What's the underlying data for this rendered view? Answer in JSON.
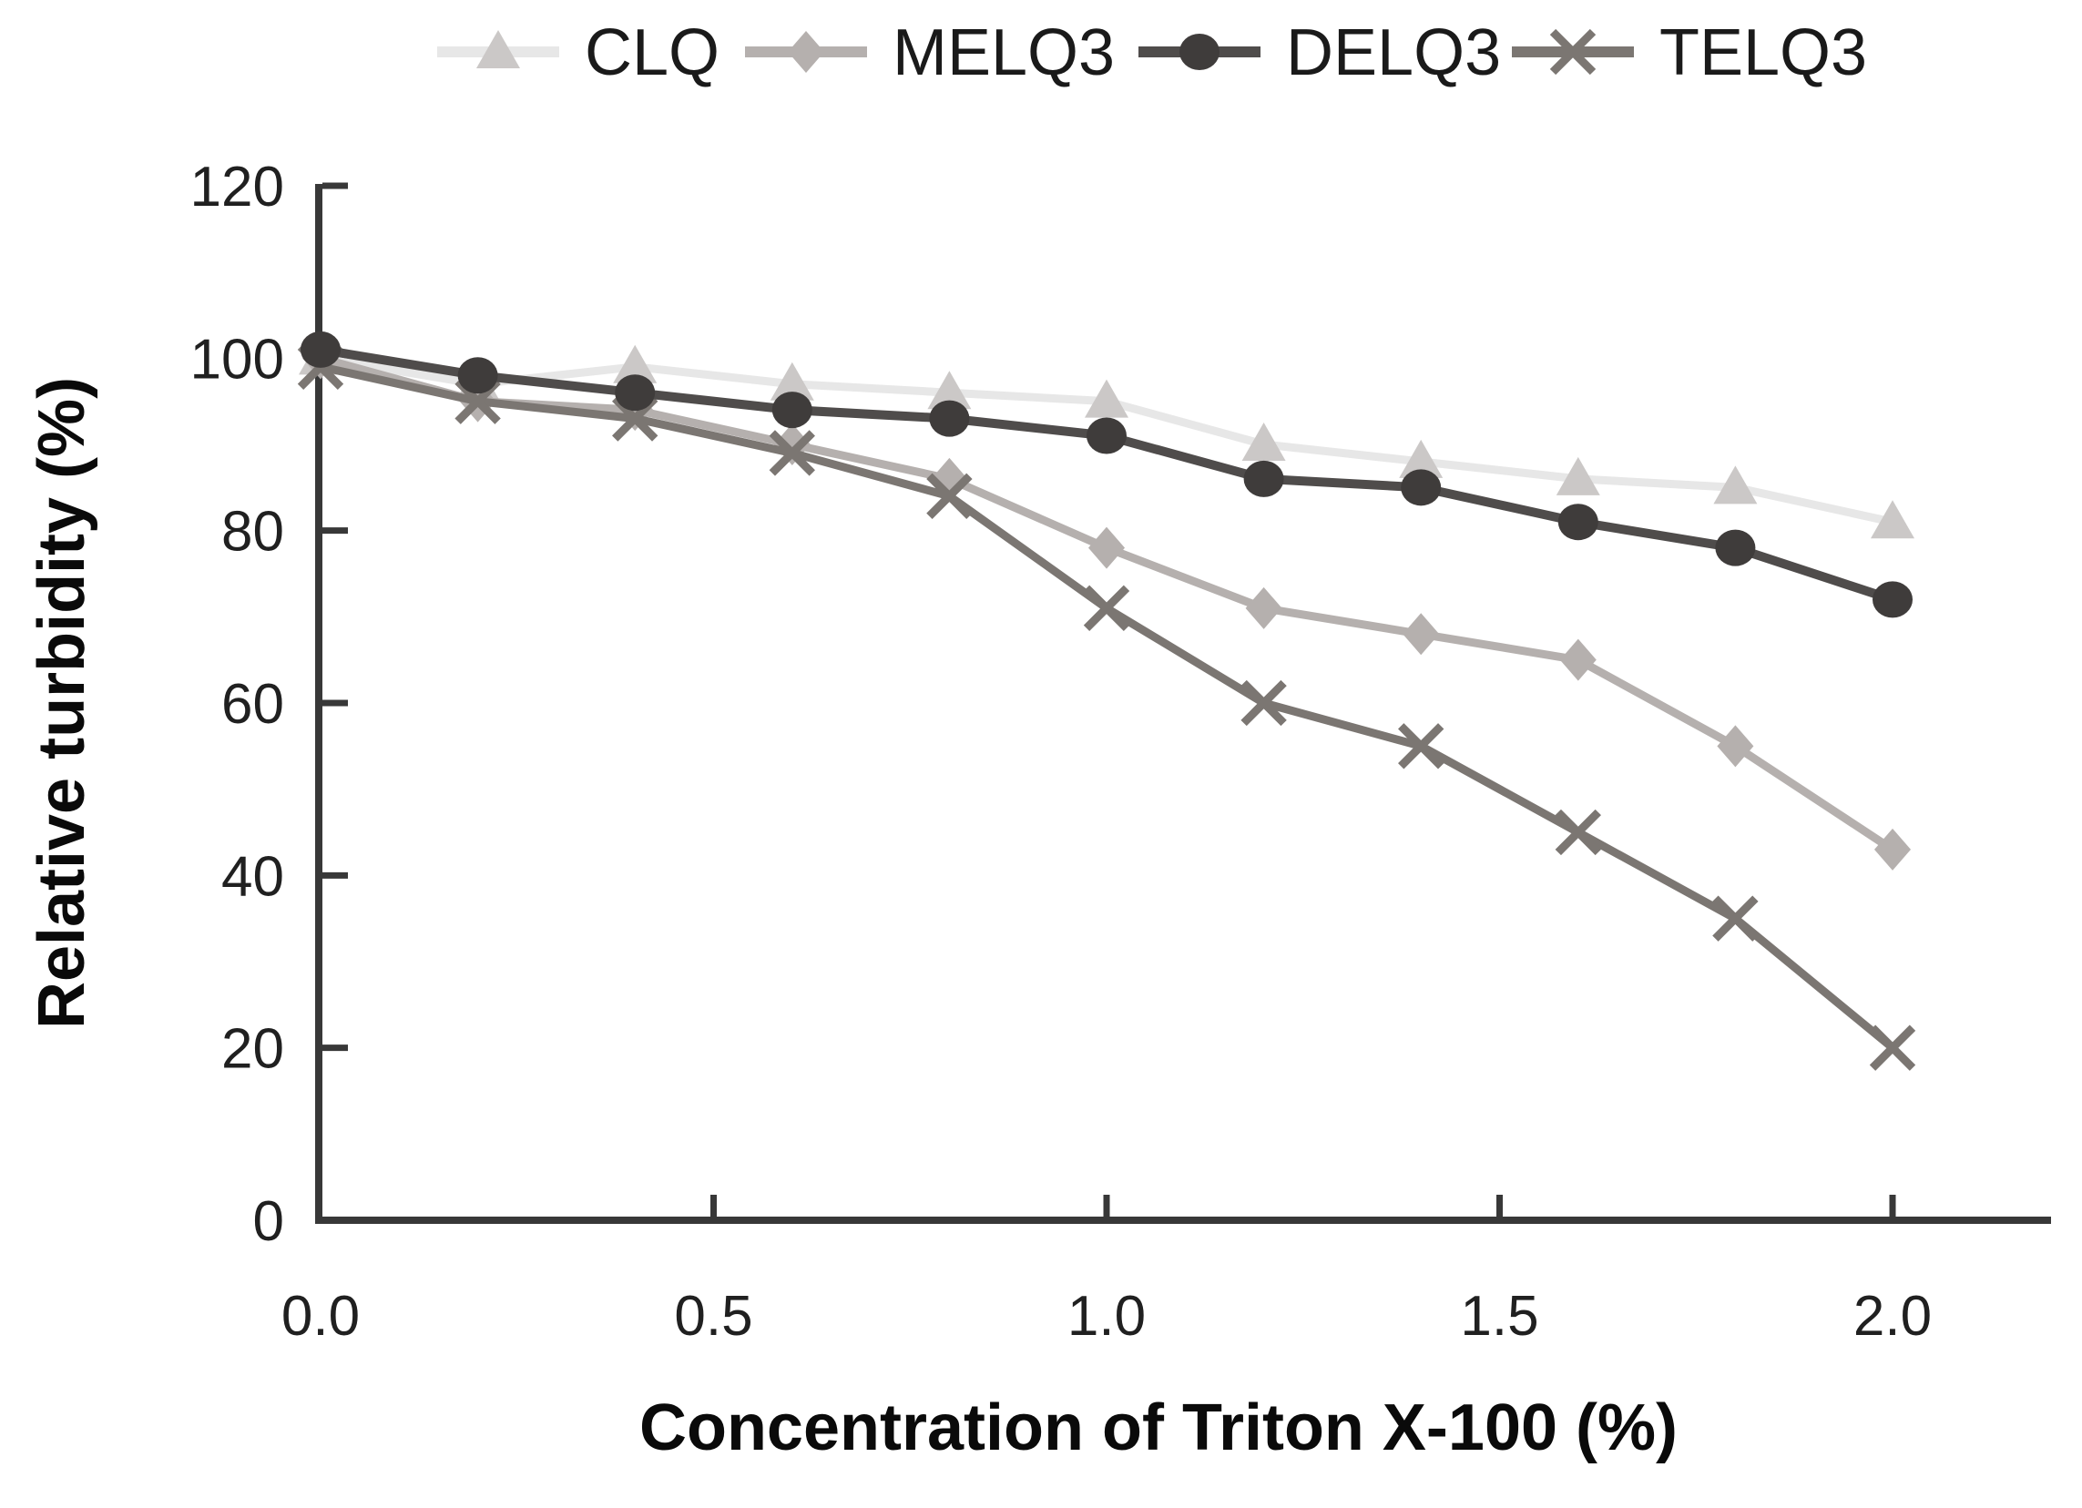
{
  "chart_data": {
    "type": "line",
    "title": "",
    "xlabel": "Concentration of Triton X-100 (%)",
    "ylabel": "Relative turbidity (%)",
    "x": [
      0.0,
      0.2,
      0.4,
      0.6,
      0.8,
      1.0,
      1.2,
      1.4,
      1.6,
      1.8,
      2.0
    ],
    "series": [
      {
        "name": "CLQ",
        "marker": "triangle",
        "line_color": "#e7e7e7",
        "marker_color": "#cbc8c7",
        "values": [
          100,
          97,
          99,
          97,
          96,
          95,
          90,
          88,
          86,
          85,
          81
        ]
      },
      {
        "name": "MELQ3",
        "marker": "diamond",
        "line_color": "#b5b0ae",
        "marker_color": "#b5b0ae",
        "values": [
          100,
          95,
          94,
          90,
          86,
          78,
          71,
          68,
          65,
          55,
          43
        ]
      },
      {
        "name": "DELQ3",
        "marker": "circle",
        "line_color": "#4f4c4b",
        "marker_color": "#3f3c3b",
        "values": [
          101,
          98,
          96,
          94,
          93,
          91,
          86,
          85,
          81,
          78,
          72
        ]
      },
      {
        "name": "TELQ3",
        "marker": "x",
        "line_color": "#7b7672",
        "marker_color": "#7b7672",
        "values": [
          99,
          95,
          93,
          89,
          84,
          71,
          60,
          55,
          45,
          35,
          20
        ]
      }
    ],
    "x_tick_labels": [
      "0.0",
      "0.5",
      "1.0",
      "1.5",
      "2.0"
    ],
    "y_tick_labels": [
      "0",
      "20",
      "40",
      "60",
      "80",
      "100",
      "120"
    ],
    "xlim": [
      0,
      2.2
    ],
    "ylim": [
      0,
      120
    ],
    "grid": "off",
    "legend_position": "top-center",
    "axis_color": "#383838"
  }
}
